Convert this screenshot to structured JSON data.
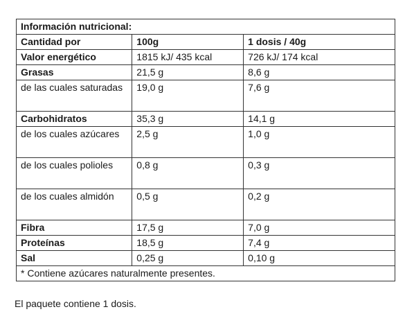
{
  "title": "Información nutricional:",
  "header": {
    "col1": "Cantidad por",
    "col2": "100g",
    "col3": "1 dosis / 40g"
  },
  "rows": [
    {
      "label": "Valor energético",
      "per100": "1815 kJ/ 435 kcal",
      "perDose": "726 kJ/ 174 kcal",
      "bold": true
    },
    {
      "label": "Grasas",
      "per100": "21,5 g",
      "perDose": "8,6 g",
      "bold": true
    },
    {
      "label": "de las cuales saturadas",
      "per100": "19,0 g",
      "perDose": "7,6 g",
      "bold": false
    },
    {
      "label": "Carbohidratos",
      "per100": "35,3 g",
      "perDose": "14,1 g",
      "bold": true
    },
    {
      "label": "de los cuales azúcares",
      "per100": "2,5 g",
      "perDose": "1,0 g",
      "bold": false
    },
    {
      "label": "de los cuales polioles",
      "per100": "0,8 g",
      "perDose": "0,3 g",
      "bold": false
    },
    {
      "label": "de los cuales almidón",
      "per100": "0,5 g",
      "perDose": "0,2 g",
      "bold": false
    },
    {
      "label": "Fibra",
      "per100": "17,5 g",
      "perDose": "7,0 g",
      "bold": true
    },
    {
      "label": "Proteínas",
      "per100": "18,5 g",
      "perDose": "7,4 g",
      "bold": true
    },
    {
      "label": "Sal",
      "per100": "0,25 g",
      "perDose": "0,10 g",
      "bold": true
    }
  ],
  "footnote": "* Contiene azúcares naturalmente presentes.",
  "package_note": "El paquete contiene 1 dosis."
}
